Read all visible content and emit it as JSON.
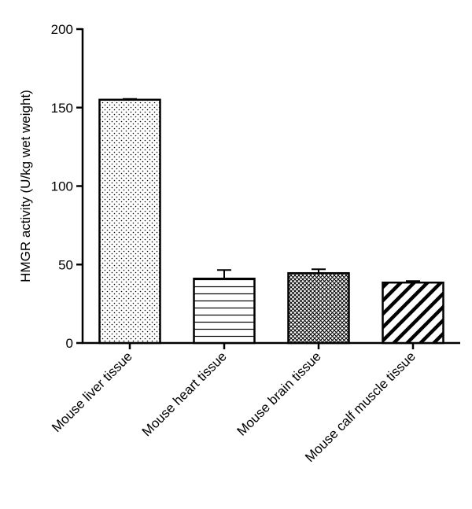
{
  "chart_data": {
    "type": "bar",
    "title": "",
    "xlabel": "",
    "ylabel": "HMGR activity (U/kg wet weight)",
    "ylim": [
      0,
      200
    ],
    "yticks": [
      "0",
      "50",
      "100",
      "150",
      "200"
    ],
    "categories": [
      "Mouse liver tissue",
      "Mouse heart tissue",
      "Mouse brain tissue",
      "Mouse calf muscle tissue"
    ],
    "values": [
      155,
      41,
      44.5,
      38.5
    ],
    "errors": [
      0.5,
      5.5,
      2.5,
      1
    ],
    "patterns": [
      "dots",
      "horizontal-lines",
      "crosshatch",
      "diagonal-stripes"
    ],
    "colors": {
      "axis": "#000000",
      "fill": "#ffffff",
      "pattern": "#000000"
    }
  }
}
